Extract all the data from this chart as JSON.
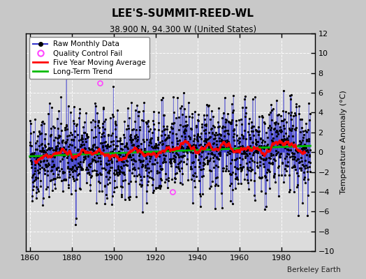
{
  "title": "LEE'S-SUMMIT-REED-WL",
  "subtitle": "38.900 N, 94.300 W (United States)",
  "ylabel": "Temperature Anomaly (°C)",
  "credit": "Berkeley Earth",
  "year_start": 1860,
  "year_end": 1993,
  "ylim": [
    -10,
    12
  ],
  "yticks": [
    -10,
    -8,
    -6,
    -4,
    -2,
    0,
    2,
    4,
    6,
    8,
    10,
    12
  ],
  "xticks": [
    1860,
    1880,
    1900,
    1920,
    1940,
    1960,
    1980
  ],
  "bg_color": "#c8c8c8",
  "plot_bg_color": "#dcdcdc",
  "raw_line_color": "#3333cc",
  "raw_dot_color": "#000000",
  "moving_avg_color": "#ff0000",
  "trend_color": "#00bb00",
  "qc_fail_color": "#ff44ff",
  "seed": 42
}
